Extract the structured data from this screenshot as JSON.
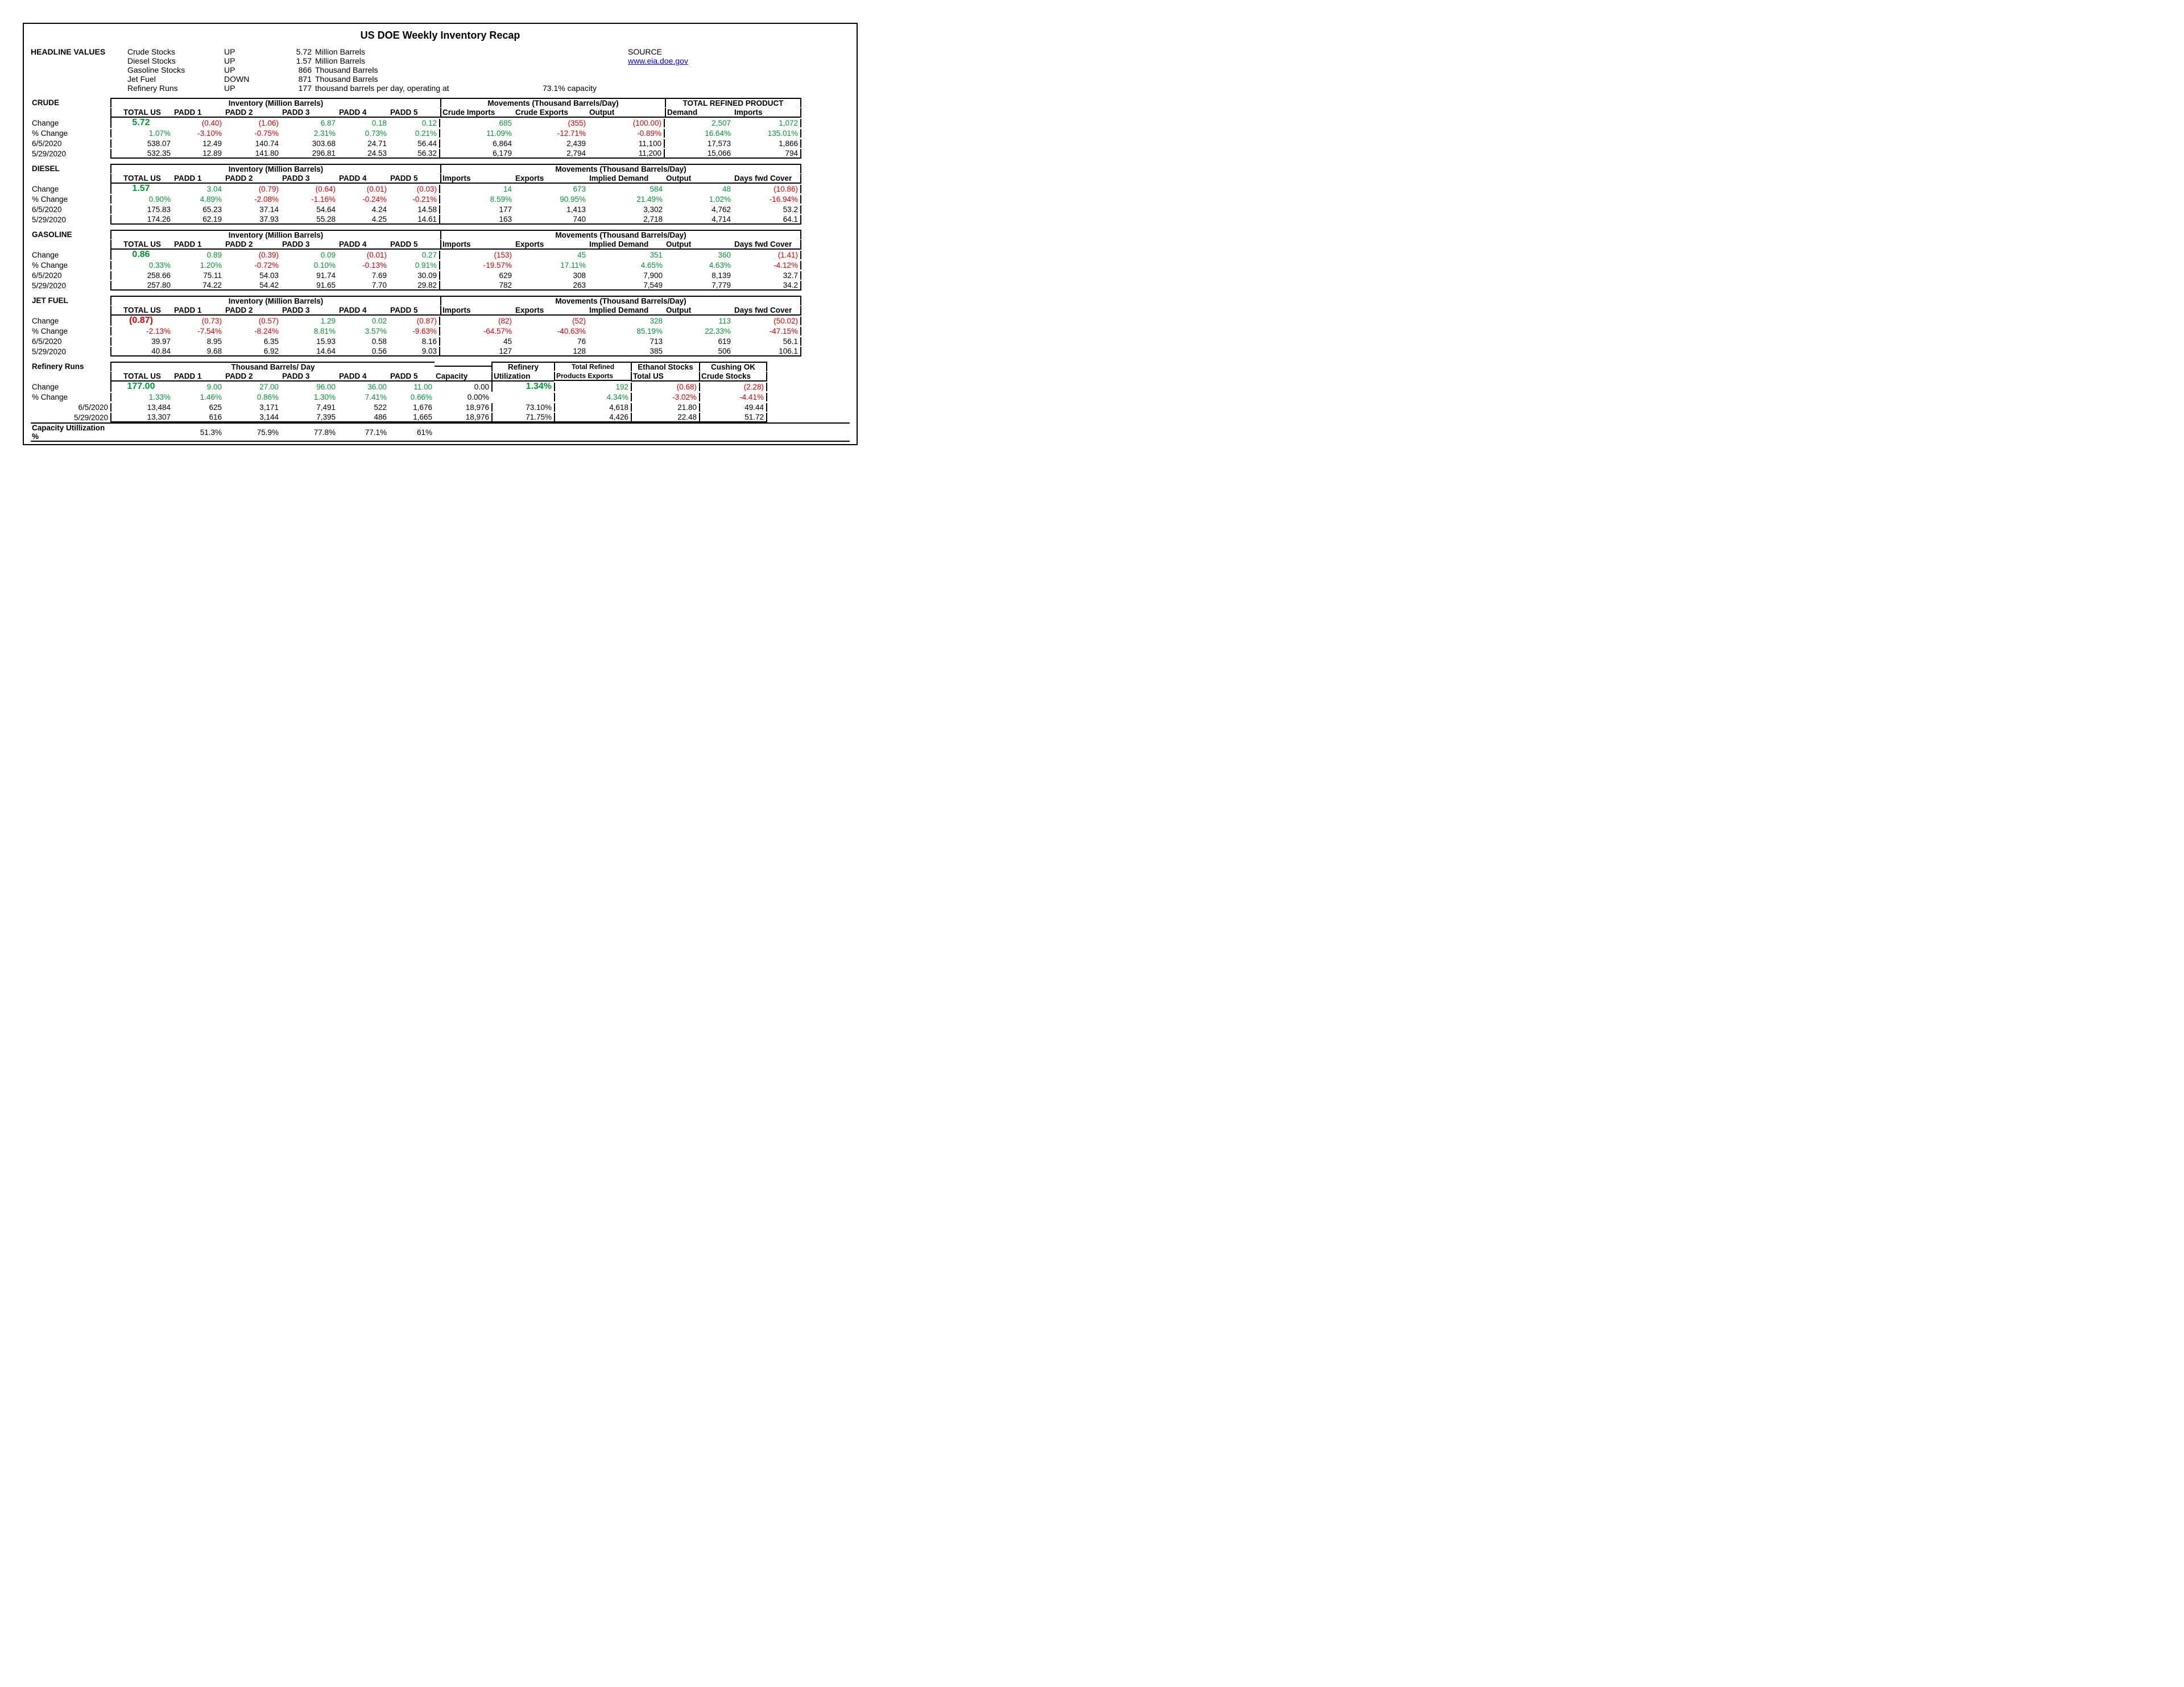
{
  "title": "US DOE Weekly Inventory Recap",
  "headline_label": "HEADLINE VALUES",
  "source_label": "SOURCE",
  "source_url": "www.eia.doe.gov",
  "headline": [
    {
      "name": "Crude Stocks",
      "dir": "UP",
      "val": "5.72",
      "unit": "Million Barrels"
    },
    {
      "name": "Diesel Stocks",
      "dir": "UP",
      "val": "1.57",
      "unit": "Million Barrels"
    },
    {
      "name": "Gasoline Stocks",
      "dir": "UP",
      "val": "866",
      "unit": "Thousand Barrels"
    },
    {
      "name": "Jet Fuel",
      "dir": "DOWN",
      "val": "871",
      "unit": "Thousand Barrels"
    },
    {
      "name": "Refinery Runs",
      "dir": "UP",
      "val": "177",
      "unit": "thousand barrels per day, operating at",
      "extra": "73.1% capacity"
    }
  ],
  "crude": {
    "label": "CRUDE",
    "h1": "Inventory (Million Barrels)",
    "h2": "Movements (Thousand Barrels/Day)",
    "h3": "TOTAL REFINED PRODUCT",
    "cols": [
      "TOTAL US",
      "PADD 1",
      "PADD 2",
      "PADD 3",
      "PADD 4",
      "PADD 5",
      "Crude Imports",
      "Crude Exports",
      "Output",
      "Demand",
      "Imports"
    ],
    "rows": [
      {
        "lbl": "Change",
        "vals": [
          {
            "v": "5.72",
            "c": "green",
            "big": 1,
            "p": 0
          },
          {
            "v": "(0.40)",
            "c": "red"
          },
          {
            "v": "(1.06)",
            "c": "red"
          },
          {
            "v": "6.87",
            "c": "green"
          },
          {
            "v": "0.18",
            "c": "green"
          },
          {
            "v": "0.12",
            "c": "green"
          },
          {
            "v": "685",
            "c": "green"
          },
          {
            "v": "(355)",
            "c": "red"
          },
          {
            "v": "(100.00)",
            "c": "red"
          },
          {
            "v": "2,507",
            "c": "green"
          },
          {
            "v": "1,072",
            "c": "green"
          }
        ]
      },
      {
        "lbl": "% Change",
        "vals": [
          {
            "v": "1.07%",
            "c": "green"
          },
          {
            "v": "-3.10%",
            "c": "red"
          },
          {
            "v": "-0.75%",
            "c": "red"
          },
          {
            "v": "2.31%",
            "c": "green"
          },
          {
            "v": "0.73%",
            "c": "green"
          },
          {
            "v": "0.21%",
            "c": "green"
          },
          {
            "v": "11.09%",
            "c": "green"
          },
          {
            "v": "-12.71%",
            "c": "red"
          },
          {
            "v": "-0.89%",
            "c": "red"
          },
          {
            "v": "16.64%",
            "c": "green"
          },
          {
            "v": "135.01%",
            "c": "green"
          }
        ]
      },
      {
        "lbl": "6/5/2020",
        "vals": [
          {
            "v": "538.07"
          },
          {
            "v": "12.49"
          },
          {
            "v": "140.74"
          },
          {
            "v": "303.68"
          },
          {
            "v": "24.71"
          },
          {
            "v": "56.44"
          },
          {
            "v": "6,864"
          },
          {
            "v": "2,439"
          },
          {
            "v": "11,100"
          },
          {
            "v": "17,573"
          },
          {
            "v": "1,866"
          }
        ]
      },
      {
        "lbl": "5/29/2020",
        "vals": [
          {
            "v": "532.35"
          },
          {
            "v": "12.89"
          },
          {
            "v": "141.80"
          },
          {
            "v": "296.81"
          },
          {
            "v": "24.53"
          },
          {
            "v": "56.32"
          },
          {
            "v": "6,179"
          },
          {
            "v": "2,794"
          },
          {
            "v": "11,200"
          },
          {
            "v": "15,066"
          },
          {
            "v": "794"
          }
        ]
      }
    ]
  },
  "diesel": {
    "label": "DIESEL",
    "h1": "Inventory (Million Barrels)",
    "h2": "Movements (Thousand Barrels/Day)",
    "cols": [
      "TOTAL US",
      "PADD 1",
      "PADD 2",
      "PADD 3",
      "PADD 4",
      "PADD 5",
      "Imports",
      "Exports",
      "Implied Demand",
      "Output",
      "Days fwd Cover"
    ],
    "rows": [
      {
        "lbl": "Change",
        "vals": [
          {
            "v": "1.57",
            "c": "green",
            "big": 1
          },
          {
            "v": "3.04",
            "c": "green"
          },
          {
            "v": "(0.79)",
            "c": "red"
          },
          {
            "v": "(0.64)",
            "c": "red"
          },
          {
            "v": "(0.01)",
            "c": "red"
          },
          {
            "v": "(0.03)",
            "c": "red"
          },
          {
            "v": "14",
            "c": "green"
          },
          {
            "v": "673",
            "c": "green"
          },
          {
            "v": "584",
            "c": "green"
          },
          {
            "v": "48",
            "c": "green"
          },
          {
            "v": "(10.86)",
            "c": "red"
          }
        ]
      },
      {
        "lbl": "% Change",
        "vals": [
          {
            "v": "0.90%",
            "c": "green"
          },
          {
            "v": "4.89%",
            "c": "green"
          },
          {
            "v": "-2.08%",
            "c": "red"
          },
          {
            "v": "-1.16%",
            "c": "red"
          },
          {
            "v": "-0.24%",
            "c": "red"
          },
          {
            "v": "-0.21%",
            "c": "red"
          },
          {
            "v": "8.59%",
            "c": "green"
          },
          {
            "v": "90.95%",
            "c": "green"
          },
          {
            "v": "21.49%",
            "c": "green"
          },
          {
            "v": "1.02%",
            "c": "green"
          },
          {
            "v": "-16.94%",
            "c": "red"
          }
        ]
      },
      {
        "lbl": "6/5/2020",
        "vals": [
          {
            "v": "175.83"
          },
          {
            "v": "65.23"
          },
          {
            "v": "37.14"
          },
          {
            "v": "54.64"
          },
          {
            "v": "4.24"
          },
          {
            "v": "14.58"
          },
          {
            "v": "177"
          },
          {
            "v": "1,413"
          },
          {
            "v": "3,302"
          },
          {
            "v": "4,762"
          },
          {
            "v": "53.2"
          }
        ]
      },
      {
        "lbl": "5/29/2020",
        "vals": [
          {
            "v": "174.26"
          },
          {
            "v": "62.19"
          },
          {
            "v": "37.93"
          },
          {
            "v": "55.28"
          },
          {
            "v": "4.25"
          },
          {
            "v": "14.61"
          },
          {
            "v": "163"
          },
          {
            "v": "740"
          },
          {
            "v": "2,718"
          },
          {
            "v": "4,714"
          },
          {
            "v": "64.1"
          }
        ]
      }
    ]
  },
  "gasoline": {
    "label": "GASOLINE",
    "h1": "Inventory (Million Barrels)",
    "h2": "Movements (Thousand Barrels/Day)",
    "cols": [
      "TOTAL US",
      "PADD 1",
      "PADD 2",
      "PADD 3",
      "PADD 4",
      "PADD 5",
      "Imports",
      "Exports",
      "Implied Demand",
      "Output",
      "Days fwd Cover"
    ],
    "rows": [
      {
        "lbl": "Change",
        "vals": [
          {
            "v": "0.86",
            "c": "green",
            "big": 1
          },
          {
            "v": "0.89",
            "c": "green"
          },
          {
            "v": "(0.39)",
            "c": "red"
          },
          {
            "v": "0.09",
            "c": "green"
          },
          {
            "v": "(0.01)",
            "c": "red"
          },
          {
            "v": "0.27",
            "c": "green"
          },
          {
            "v": "(153)",
            "c": "red"
          },
          {
            "v": "45",
            "c": "green"
          },
          {
            "v": "351",
            "c": "green"
          },
          {
            "v": "360",
            "c": "green"
          },
          {
            "v": "(1.41)",
            "c": "red"
          }
        ]
      },
      {
        "lbl": "% Change",
        "vals": [
          {
            "v": "0.33%",
            "c": "green"
          },
          {
            "v": "1.20%",
            "c": "green"
          },
          {
            "v": "-0.72%",
            "c": "red"
          },
          {
            "v": "0.10%",
            "c": "green"
          },
          {
            "v": "-0.13%",
            "c": "red"
          },
          {
            "v": "0.91%",
            "c": "green"
          },
          {
            "v": "-19.57%",
            "c": "red"
          },
          {
            "v": "17.11%",
            "c": "green"
          },
          {
            "v": "4.65%",
            "c": "green"
          },
          {
            "v": "4.63%",
            "c": "green"
          },
          {
            "v": "-4.12%",
            "c": "red"
          }
        ]
      },
      {
        "lbl": "6/5/2020",
        "vals": [
          {
            "v": "258.66"
          },
          {
            "v": "75.11"
          },
          {
            "v": "54.03"
          },
          {
            "v": "91.74"
          },
          {
            "v": "7.69"
          },
          {
            "v": "30.09"
          },
          {
            "v": "629"
          },
          {
            "v": "308"
          },
          {
            "v": "7,900"
          },
          {
            "v": "8,139"
          },
          {
            "v": "32.7"
          }
        ]
      },
      {
        "lbl": "5/29/2020",
        "vals": [
          {
            "v": "257.80"
          },
          {
            "v": "74.22"
          },
          {
            "v": "54.42"
          },
          {
            "v": "91.65"
          },
          {
            "v": "7.70"
          },
          {
            "v": "29.82"
          },
          {
            "v": "782"
          },
          {
            "v": "263"
          },
          {
            "v": "7,549"
          },
          {
            "v": "7,779"
          },
          {
            "v": "34.2"
          }
        ]
      }
    ]
  },
  "jet": {
    "label": "JET FUEL",
    "h1": "Inventory (Million Barrels)",
    "h2": "Movements (Thousand Barrels/Day)",
    "cols": [
      "TOTAL US",
      "PADD 1",
      "PADD 2",
      "PADD 3",
      "PADD 4",
      "PADD 5",
      "Imports",
      "Exports",
      "Implied Demand",
      "Output",
      "Days fwd Cover"
    ],
    "rows": [
      {
        "lbl": "Change",
        "vals": [
          {
            "v": "(0.87)",
            "c": "red",
            "big": 1
          },
          {
            "v": "(0.73)",
            "c": "red"
          },
          {
            "v": "(0.57)",
            "c": "red"
          },
          {
            "v": "1.29",
            "c": "green"
          },
          {
            "v": "0.02",
            "c": "green"
          },
          {
            "v": "(0.87)",
            "c": "red"
          },
          {
            "v": "(82)",
            "c": "red"
          },
          {
            "v": "(52)",
            "c": "red"
          },
          {
            "v": "328",
            "c": "green"
          },
          {
            "v": "113",
            "c": "green"
          },
          {
            "v": "(50.02)",
            "c": "red"
          }
        ]
      },
      {
        "lbl": "% Change",
        "vals": [
          {
            "v": "-2.13%",
            "c": "red"
          },
          {
            "v": "-7.54%",
            "c": "red"
          },
          {
            "v": "-8.24%",
            "c": "red"
          },
          {
            "v": "8.81%",
            "c": "green"
          },
          {
            "v": "3.57%",
            "c": "green"
          },
          {
            "v": "-9.63%",
            "c": "red"
          },
          {
            "v": "-64.57%",
            "c": "red"
          },
          {
            "v": "-40.63%",
            "c": "red"
          },
          {
            "v": "85.19%",
            "c": "green"
          },
          {
            "v": "22.33%",
            "c": "green"
          },
          {
            "v": "-47.15%",
            "c": "red"
          }
        ]
      },
      {
        "lbl": "6/5/2020",
        "vals": [
          {
            "v": "39.97"
          },
          {
            "v": "8.95"
          },
          {
            "v": "6.35"
          },
          {
            "v": "15.93"
          },
          {
            "v": "0.58"
          },
          {
            "v": "8.16"
          },
          {
            "v": "45"
          },
          {
            "v": "76"
          },
          {
            "v": "713"
          },
          {
            "v": "619"
          },
          {
            "v": "56.1"
          }
        ]
      },
      {
        "lbl": "5/29/2020",
        "vals": [
          {
            "v": "40.84"
          },
          {
            "v": "9.68"
          },
          {
            "v": "6.92"
          },
          {
            "v": "14.64"
          },
          {
            "v": "0.56"
          },
          {
            "v": "9.03"
          },
          {
            "v": "127"
          },
          {
            "v": "128"
          },
          {
            "v": "385"
          },
          {
            "v": "506"
          },
          {
            "v": "106.1"
          }
        ]
      }
    ]
  },
  "refinery": {
    "label": "Refinery Runs",
    "h1": "Thousand Barrels/ Day",
    "h2": "Refinery",
    "h3": "Total Refined",
    "h4": "Ethanol Stocks",
    "h5": "Cushing OK",
    "cols": [
      "TOTAL US",
      "PADD 1",
      "PADD 2",
      "PADD 3",
      "PADD 4",
      "PADD 5",
      "Capacity",
      "Utilization",
      "Products Exports",
      "Total US",
      "Crude Stocks"
    ],
    "rows": [
      {
        "lbl": "Change",
        "vals": [
          {
            "v": "177.00",
            "c": "green",
            "big": 1
          },
          {
            "v": "9.00",
            "c": "green"
          },
          {
            "v": "27.00",
            "c": "green"
          },
          {
            "v": "96.00",
            "c": "green"
          },
          {
            "v": "36.00",
            "c": "green"
          },
          {
            "v": "11.00",
            "c": "green"
          },
          {
            "v": "0.00"
          },
          {
            "v": "1.34%",
            "c": "green",
            "big": 1
          },
          {
            "v": "192",
            "c": "green"
          },
          {
            "v": "(0.68)",
            "c": "red"
          },
          {
            "v": "(2.28)",
            "c": "red"
          }
        ]
      },
      {
        "lbl": "% Change",
        "vals": [
          {
            "v": "1.33%",
            "c": "green"
          },
          {
            "v": "1.46%",
            "c": "green"
          },
          {
            "v": "0.86%",
            "c": "green"
          },
          {
            "v": "1.30%",
            "c": "green"
          },
          {
            "v": "7.41%",
            "c": "green"
          },
          {
            "v": "0.66%",
            "c": "green"
          },
          {
            "v": "0.00%"
          },
          {
            "v": ""
          },
          {
            "v": "4.34%",
            "c": "green"
          },
          {
            "v": "-3.02%",
            "c": "red"
          },
          {
            "v": "-4.41%",
            "c": "red"
          }
        ]
      },
      {
        "lbl": "6/5/2020",
        "vals": [
          {
            "v": "13,484"
          },
          {
            "v": "625"
          },
          {
            "v": "3,171"
          },
          {
            "v": "7,491"
          },
          {
            "v": "522"
          },
          {
            "v": "1,676"
          },
          {
            "v": "18,976"
          },
          {
            "v": "73.10%"
          },
          {
            "v": "4,618"
          },
          {
            "v": "21.80"
          },
          {
            "v": "49.44"
          }
        ]
      },
      {
        "lbl": "5/29/2020",
        "vals": [
          {
            "v": "13,307"
          },
          {
            "v": "616"
          },
          {
            "v": "3,144"
          },
          {
            "v": "7,395"
          },
          {
            "v": "486"
          },
          {
            "v": "1,665"
          },
          {
            "v": "18,976"
          },
          {
            "v": "71.75%"
          },
          {
            "v": "4,426"
          },
          {
            "v": "22.48"
          },
          {
            "v": "51.72"
          }
        ]
      }
    ],
    "caputil": {
      "lbl": "Capacity Utillization %",
      "vals": [
        "",
        "51.3%",
        "75.9%",
        "77.8%",
        "77.1%",
        "61%",
        "",
        "",
        "",
        "",
        ""
      ]
    }
  }
}
